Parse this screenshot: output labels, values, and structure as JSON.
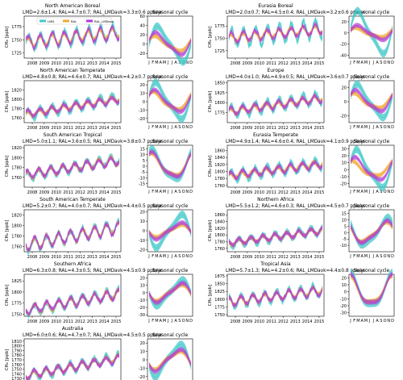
{
  "figure": {
    "legend": [
      {
        "name": "LMD",
        "color": "#40c8c8"
      },
      {
        "name": "RAL",
        "color": "#f0a830"
      },
      {
        "name": "RAL_LMDavk",
        "color": "#b03ad8"
      }
    ],
    "seasonal_title": "Seasonal cycle",
    "year_ticks": [
      "2008",
      "2009",
      "2010",
      "2011",
      "2012",
      "2013",
      "2014",
      "2015"
    ],
    "month_ticks": [
      "J",
      "F",
      "M",
      "A",
      "M",
      "J",
      "J",
      "A",
      "S",
      "O",
      "N",
      "D"
    ],
    "ylabel": "CH₄ [ppb]"
  },
  "chart_data": [
    {
      "type": "line",
      "region": "North American Boreal",
      "stats": "LMD=2.6±1.4; RAL=4.7±0.7; RAL_LMDavk=3.3±0.6 ppb/yr",
      "ylim": [
        1715,
        1795
      ],
      "yticks": [
        "1725",
        "1750",
        "1775"
      ],
      "base": 1755,
      "trend": 2.5,
      "amp": [
        14,
        9,
        12
      ],
      "sylim": [
        -30,
        60
      ],
      "syticks": [
        "-20",
        "0",
        "20",
        "40",
        "60"
      ],
      "sc_amp": [
        35,
        15,
        22
      ],
      "sc_phase": [
        0.0,
        0.5,
        0.3
      ]
    },
    {
      "type": "line",
      "region": "Eurasia Boreal",
      "stats": "LMD=2.0±0.7; RAL=4.5±0.4; RAL_LMDavk=3.2±0.6 ppb/yr",
      "ylim": [
        1710,
        1795
      ],
      "yticks": [
        "1725",
        "1750",
        "1775"
      ],
      "base": 1760,
      "trend": 2.5,
      "amp": [
        18,
        8,
        10
      ],
      "sylim": [
        -45,
        30
      ],
      "syticks": [
        "-40",
        "-20",
        "0",
        "20"
      ],
      "sc_amp": [
        35,
        8,
        12
      ],
      "sc_phase": [
        0.2,
        0.6,
        0.3
      ]
    },
    {
      "type": "line",
      "region": "North American Temperate",
      "stats": "LMD=4.8±0.8; RAL=4.6±0.7; RAL_LMDavk=4.2±0.7 ppb/yr",
      "ylim": [
        1750,
        1840
      ],
      "yticks": [
        "1760",
        "1780",
        "1800",
        "1820"
      ],
      "base": 1785,
      "trend": 4.5,
      "amp": [
        10,
        6,
        7
      ],
      "sylim": [
        -25,
        25
      ],
      "syticks": [
        "-20",
        "-10",
        "0",
        "10",
        "20"
      ],
      "sc_amp": [
        20,
        10,
        12
      ],
      "sc_phase": [
        0.3,
        0.8,
        0.5
      ]
    },
    {
      "type": "line",
      "region": "Europe",
      "stats": "LMD=4.0±1.0; RAL=4.9±0.5; RAL_LMDavk=3.6±0.7 ppb/yr",
      "ylim": [
        1750,
        1855
      ],
      "yticks": [
        "1775",
        "1800",
        "1825",
        "1850"
      ],
      "base": 1795,
      "trend": 4.5,
      "amp": [
        14,
        7,
        9
      ],
      "sylim": [
        -30,
        30
      ],
      "syticks": [
        "-20",
        "0",
        "20"
      ],
      "sc_amp": [
        22,
        10,
        14
      ],
      "sc_phase": [
        0.3,
        0.9,
        0.6
      ]
    },
    {
      "type": "line",
      "region": "South American Tropical",
      "stats": "LMD=5.0±1.1; RAL=3.6±0.5; RAL_LMDavk=3.8±0.7 ppb/yr",
      "ylim": [
        1740,
        1825
      ],
      "yticks": [
        "1760",
        "1780",
        "1800",
        "1820"
      ],
      "base": 1780,
      "trend": 4.0,
      "amp": [
        9,
        8,
        8
      ],
      "sylim": [
        -18,
        18
      ],
      "syticks": [
        "-15",
        "-10",
        "-5",
        "0",
        "5",
        "10",
        "15"
      ],
      "sc_amp": [
        12,
        9,
        10
      ],
      "sc_phase": [
        1.0,
        1.1,
        1.0
      ]
    },
    {
      "type": "line",
      "region": "Eurasia Temperate",
      "stats": "LMD=4.9±1.4; RAL=4.6±0.4; RAL_LMDavk=4.1±0.9 ppb/yr",
      "ylim": [
        1755,
        1875
      ],
      "yticks": [
        "1760",
        "1780",
        "1800",
        "1820",
        "1840",
        "1860"
      ],
      "base": 1805,
      "trend": 4.6,
      "amp": [
        15,
        8,
        10
      ],
      "sylim": [
        -25,
        35
      ],
      "syticks": [
        "-20",
        "-10",
        "0",
        "10",
        "20",
        "30"
      ],
      "sc_amp": [
        25,
        10,
        15
      ],
      "sc_phase": [
        0.4,
        1.2,
        0.7
      ]
    },
    {
      "type": "line",
      "region": "South American Temperate",
      "stats": "LMD=5.2±0.7; RAL=4.0±0.7; RAL_LMDavk=4.4±0.5 ppb/yr",
      "ylim": [
        1750,
        1830
      ],
      "yticks": [
        "1760",
        "1780",
        "1800",
        "1820"
      ],
      "base": 1780,
      "trend": 4.5,
      "amp": [
        11,
        10,
        11
      ],
      "sylim": [
        -22,
        22
      ],
      "syticks": [
        "-20",
        "-10",
        "0",
        "10",
        "20"
      ],
      "sc_amp": [
        16,
        6,
        8
      ],
      "sc_phase": [
        3.3,
        3.3,
        3.3
      ]
    },
    {
      "type": "line",
      "region": "Northern Africa",
      "stats": "LMD=5.5±1.2; RAL=4.6±0.3; RAL_LMDavk=4.5±0.7 ppb/yr",
      "ylim": [
        1750,
        1875
      ],
      "yticks": [
        "1760",
        "1780",
        "1800",
        "1820",
        "1840",
        "1860"
      ],
      "base": 1795,
      "trend": 5.0,
      "amp": [
        12,
        8,
        9
      ],
      "sylim": [
        -15,
        18
      ],
      "syticks": [
        "-10",
        "-5",
        "0",
        "5",
        "10",
        "15"
      ],
      "sc_amp": [
        10,
        7,
        8
      ],
      "sc_phase": [
        2.5,
        2.7,
        2.6
      ]
    },
    {
      "type": "line",
      "region": "Southern Africa",
      "stats": "LMD=6.3±0.8; RAL=4.3±0.5; RAL_LMDavk=4.5±0.9 ppb/yr",
      "ylim": [
        1745,
        1840
      ],
      "yticks": [
        "1750",
        "1775",
        "1800",
        "1825"
      ],
      "base": 1778,
      "trend": 5.0,
      "amp": [
        11,
        10,
        10
      ],
      "sylim": [
        -32,
        25
      ],
      "syticks": [
        "-30",
        "-20",
        "-10",
        "0",
        "10",
        "20"
      ],
      "sc_amp": [
        16,
        10,
        12
      ],
      "sc_phase": [
        3.2,
        3.3,
        3.2
      ]
    },
    {
      "type": "line",
      "region": "Tropical Asia",
      "stats": "LMD=5.7±1.3; RAL=4.2±0.6; RAL_LMDavk=4.4±0.8 ppb/yr",
      "ylim": [
        1745,
        1880
      ],
      "yticks": [
        "1750",
        "1775",
        "1800",
        "1825",
        "1850",
        "1875"
      ],
      "base": 1810,
      "trend": 5.0,
      "amp": [
        18,
        12,
        14
      ],
      "sylim": [
        -35,
        25
      ],
      "syticks": [
        "-30",
        "-20",
        "-10",
        "0",
        "10",
        "20"
      ],
      "sc_amp": [
        22,
        18,
        20
      ],
      "sc_phase": [
        1.6,
        1.7,
        1.6
      ]
    },
    {
      "type": "line",
      "region": "Australia",
      "stats": "LMD=6.0±0.6; RAL=4.7±0.7; RAL_LMDavk=4.5±0.5 ppb/yr",
      "ylim": [
        1725,
        1815
      ],
      "yticks": [
        "1730",
        "1740",
        "1750",
        "1760",
        "1770",
        "1780",
        "1790",
        "1800",
        "1810"
      ],
      "base": 1755,
      "trend": 5.0,
      "amp": [
        10,
        7,
        8
      ],
      "sylim": [
        -25,
        25
      ],
      "syticks": [
        "-20",
        "-10",
        "0",
        "10",
        "20"
      ],
      "sc_amp": [
        18,
        10,
        12
      ],
      "sc_phase": [
        3.5,
        3.6,
        3.5
      ]
    }
  ]
}
